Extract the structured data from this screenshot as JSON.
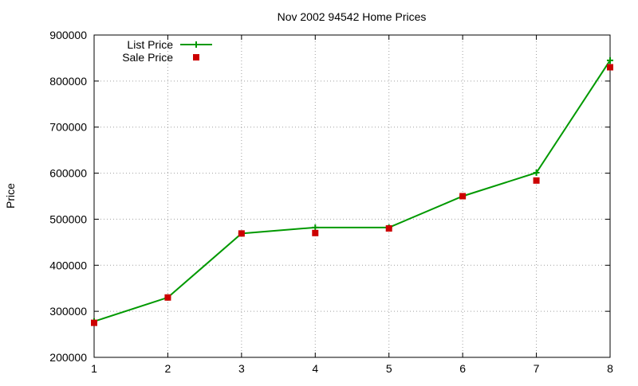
{
  "chart_data": {
    "type": "line",
    "title": "Nov 2002 94542 Home Prices",
    "xlabel": "",
    "ylabel": "Price",
    "x": [
      1,
      2,
      3,
      4,
      5,
      6,
      7,
      8
    ],
    "xlim": [
      1,
      8
    ],
    "ylim": [
      200000,
      900000
    ],
    "xticks": [
      "1",
      "2",
      "3",
      "4",
      "5",
      "6",
      "7",
      "8"
    ],
    "yticks": [
      "200000",
      "300000",
      "400000",
      "500000",
      "600000",
      "700000",
      "800000",
      "900000"
    ],
    "grid": true,
    "legend": "top-left",
    "series": [
      {
        "name": "List Price",
        "style": "line-with-plus-markers",
        "color": "#009900",
        "values": [
          278000,
          330000,
          469000,
          482000,
          482000,
          550000,
          601000,
          845000
        ]
      },
      {
        "name": "Sale Price",
        "style": "square-markers",
        "color": "#cc0000",
        "values": [
          275000,
          330000,
          469000,
          470000,
          480000,
          550000,
          584000,
          830000
        ]
      }
    ]
  }
}
